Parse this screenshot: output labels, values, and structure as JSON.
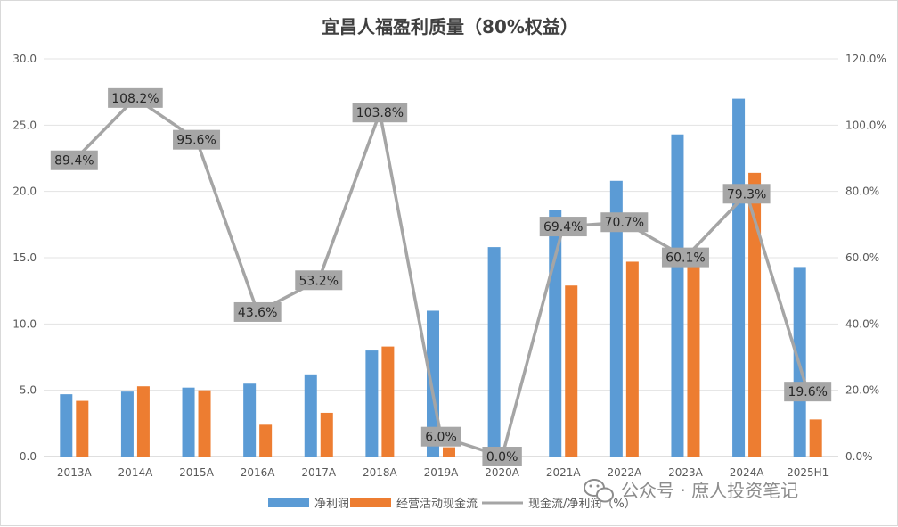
{
  "chart_data": {
    "type": "bar",
    "title": "宜昌人福盈利质量（80%权益）",
    "categories": [
      "2013A",
      "2014A",
      "2015A",
      "2016A",
      "2017A",
      "2018A",
      "2019A",
      "2020A",
      "2021A",
      "2022A",
      "2023A",
      "2024A",
      "2025H1"
    ],
    "series": [
      {
        "name": "净利润",
        "type": "bar",
        "axis": "left",
        "color": "#5b9bd5",
        "values": [
          4.7,
          4.9,
          5.2,
          5.5,
          6.2,
          8.0,
          11.0,
          15.8,
          18.6,
          20.8,
          24.3,
          27.0,
          14.3
        ]
      },
      {
        "name": "经营活动现金流",
        "type": "bar",
        "axis": "left",
        "color": "#ed7d31",
        "values": [
          4.2,
          5.3,
          5.0,
          2.4,
          3.3,
          8.3,
          0.7,
          0.0,
          12.9,
          14.7,
          14.6,
          21.4,
          2.8
        ]
      },
      {
        "name": "现金流/净利润（%）",
        "type": "line",
        "axis": "right",
        "color": "#a5a5a5",
        "values": [
          89.4,
          108.2,
          95.6,
          43.6,
          53.2,
          103.8,
          6.0,
          0.0,
          69.4,
          70.7,
          60.1,
          79.3,
          19.6
        ]
      }
    ],
    "ratio_labels": [
      "89.4%",
      "108.2%",
      "95.6%",
      "43.6%",
      "53.2%",
      "103.8%",
      "6.0%",
      "0.0%",
      "69.4%",
      "70.7%",
      "60.1%",
      "79.3%",
      "19.6%"
    ],
    "ylim_left": [
      0,
      30
    ],
    "ylim_right": [
      0,
      120
    ],
    "left_ticks": [
      "0.0",
      "5.0",
      "10.0",
      "15.0",
      "20.0",
      "25.0",
      "30.0"
    ],
    "right_ticks": [
      "0.0%",
      "20.0%",
      "40.0%",
      "60.0%",
      "80.0%",
      "100.0%",
      "120.0%"
    ],
    "legend_position": "bottom",
    "grid": true
  },
  "watermark": {
    "text": "公众号 · 庶人投资笔记",
    "icon": "wechat-icon"
  }
}
